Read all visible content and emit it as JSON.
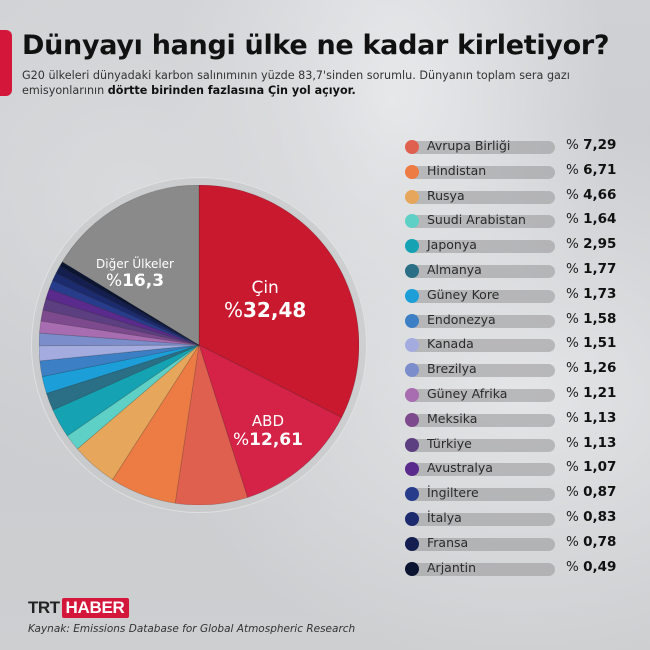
{
  "header": {
    "title": "Dünyayı hangi ülke ne kadar kirletiyor?",
    "subtitle_plain": "G20 ülkeleri dünyadaki karbon salınımının yüzde 83,7'sinden sorumlu. Dünyanın toplam sera gazı emisyonlarının ",
    "subtitle_bold": "dörtte birinden fazlasına Çin yol açıyor.",
    "accent_color": "#d4163a"
  },
  "pie_labels": {
    "china": {
      "name": "Çin",
      "prefix": "%",
      "value": "32,48"
    },
    "usa": {
      "name": "ABD",
      "prefix": "%",
      "value": "12,61"
    },
    "others": {
      "name": "Diğer Ülkeler",
      "prefix": "%",
      "value": "16,3"
    }
  },
  "legend": [
    {
      "name": "Avrupa Birliği",
      "value": "7,29",
      "color": "#e0604f"
    },
    {
      "name": "Hindistan",
      "value": "6,71",
      "color": "#ec7b44"
    },
    {
      "name": "Rusya",
      "value": "4,66",
      "color": "#e6a75c"
    },
    {
      "name": "Suudi Arabistan",
      "value": "1,64",
      "color": "#5fd0c6"
    },
    {
      "name": "Japonya",
      "value": "2,95",
      "color": "#15a3b3"
    },
    {
      "name": "Almanya",
      "value": "1,77",
      "color": "#2b6f86"
    },
    {
      "name": "Güney Kore",
      "value": "1,73",
      "color": "#1c9ed8"
    },
    {
      "name": "Endonezya",
      "value": "1,58",
      "color": "#3d7fc4"
    },
    {
      "name": "Kanada",
      "value": "1,51",
      "color": "#a4acdf"
    },
    {
      "name": "Brezilya",
      "value": "1,26",
      "color": "#7b8dca"
    },
    {
      "name": "Güney Afrika",
      "value": "1,21",
      "color": "#a86cb0"
    },
    {
      "name": "Meksika",
      "value": "1,13",
      "color": "#7d4a8e"
    },
    {
      "name": "Türkiye",
      "value": "1,13",
      "color": "#5c3f80"
    },
    {
      "name": "Avustralya",
      "value": "1,07",
      "color": "#5a2a8c"
    },
    {
      "name": "İngiltere",
      "value": "0,87",
      "color": "#273d8c"
    },
    {
      "name": "İtalya",
      "value": "0,83",
      "color": "#1c2a6e"
    },
    {
      "name": "Fransa",
      "value": "0,78",
      "color": "#141f4f"
    },
    {
      "name": "Arjantin",
      "value": "0,49",
      "color": "#0b1430"
    }
  ],
  "legend_prefix": "%",
  "footer": {
    "brand_left": "TRT",
    "brand_right": "HABER",
    "source_label": "Kaynak:",
    "source_text": " Emissions Database for Global Atmospheric Research"
  },
  "chart_data": {
    "type": "pie",
    "title": "Dünyayı hangi ülke ne kadar kirletiyor?",
    "unit": "% of global greenhouse gas emissions",
    "categories": [
      "Çin",
      "ABD",
      "Avrupa Birliği",
      "Hindistan",
      "Rusya",
      "Suudi Arabistan",
      "Japonya",
      "Almanya",
      "Güney Kore",
      "Endonezya",
      "Kanada",
      "Brezilya",
      "Güney Afrika",
      "Meksika",
      "Türkiye",
      "Avustralya",
      "İngiltere",
      "İtalya",
      "Fransa",
      "Arjantin",
      "Diğer Ülkeler"
    ],
    "values": [
      32.48,
      12.61,
      7.29,
      6.71,
      4.66,
      1.64,
      2.95,
      1.77,
      1.73,
      1.58,
      1.51,
      1.26,
      1.21,
      1.13,
      1.13,
      1.07,
      0.87,
      0.83,
      0.78,
      0.49,
      16.3
    ],
    "colors": [
      "#c8192f",
      "#d42346",
      "#e0604f",
      "#ec7b44",
      "#e6a75c",
      "#5fd0c6",
      "#15a3b3",
      "#2b6f86",
      "#1c9ed8",
      "#3d7fc4",
      "#a4acdf",
      "#7b8dca",
      "#a86cb0",
      "#7d4a8e",
      "#5c3f80",
      "#5a2a8c",
      "#273d8c",
      "#1c2a6e",
      "#141f4f",
      "#0b1430",
      "#8a8a8a"
    ],
    "start_angle": "12 o'clock, clockwise",
    "legend_position": "right"
  }
}
